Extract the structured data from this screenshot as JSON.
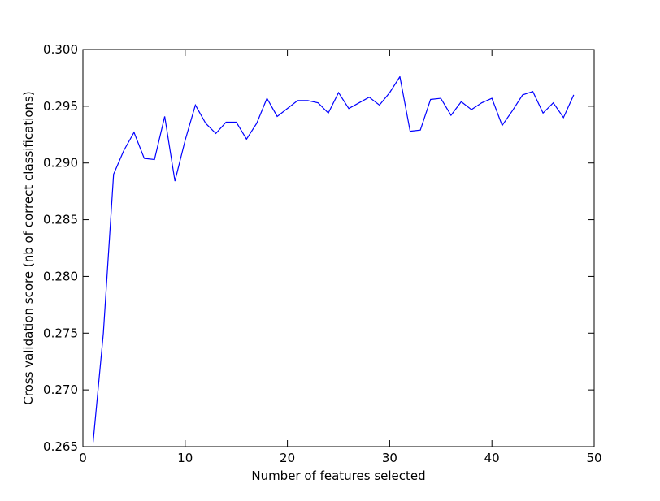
{
  "chart_data": {
    "type": "line",
    "title": "",
    "xlabel": "Number of features selected",
    "ylabel": "Cross validation score (nb of correct classifications)",
    "xlim": [
      0,
      50
    ],
    "ylim": [
      0.265,
      0.3
    ],
    "grid": false,
    "legend": "none",
    "line_color": "#0000ff",
    "x_ticks": [
      {
        "value": 0,
        "label": "0"
      },
      {
        "value": 10,
        "label": "10"
      },
      {
        "value": 20,
        "label": "20"
      },
      {
        "value": 30,
        "label": "30"
      },
      {
        "value": 40,
        "label": "40"
      },
      {
        "value": 50,
        "label": "50"
      }
    ],
    "y_ticks": [
      {
        "value": 0.265,
        "label": "0.265"
      },
      {
        "value": 0.27,
        "label": "0.270"
      },
      {
        "value": 0.275,
        "label": "0.275"
      },
      {
        "value": 0.28,
        "label": "0.280"
      },
      {
        "value": 0.285,
        "label": "0.285"
      },
      {
        "value": 0.29,
        "label": "0.290"
      },
      {
        "value": 0.295,
        "label": "0.295"
      },
      {
        "value": 0.3,
        "label": "0.300"
      }
    ],
    "series": [
      {
        "x": [
          1,
          2,
          3,
          4,
          5,
          6,
          7,
          8,
          9,
          10,
          11,
          12,
          13,
          14,
          15,
          16,
          17,
          18,
          19,
          20,
          21,
          22,
          23,
          24,
          25,
          26,
          27,
          28,
          29,
          30,
          31,
          32,
          33,
          34,
          35,
          36,
          37,
          38,
          39,
          40,
          41,
          42,
          43,
          44,
          45,
          46,
          47,
          48
        ],
        "values": [
          0.2654,
          0.275,
          0.289,
          0.2911,
          0.2927,
          0.2904,
          0.2903,
          0.2941,
          0.2884,
          0.292,
          0.2951,
          0.2935,
          0.2926,
          0.2936,
          0.2936,
          0.2921,
          0.2935,
          0.2957,
          0.2941,
          0.2948,
          0.2955,
          0.2955,
          0.2953,
          0.2944,
          0.2962,
          0.2948,
          0.2953,
          0.2958,
          0.2951,
          0.2962,
          0.2976,
          0.2928,
          0.2929,
          0.2956,
          0.2957,
          0.2942,
          0.2954,
          0.2947,
          0.2953,
          0.2957,
          0.2933,
          0.2946,
          0.296,
          0.2963,
          0.2944,
          0.2953,
          0.294,
          0.296
        ]
      }
    ]
  }
}
